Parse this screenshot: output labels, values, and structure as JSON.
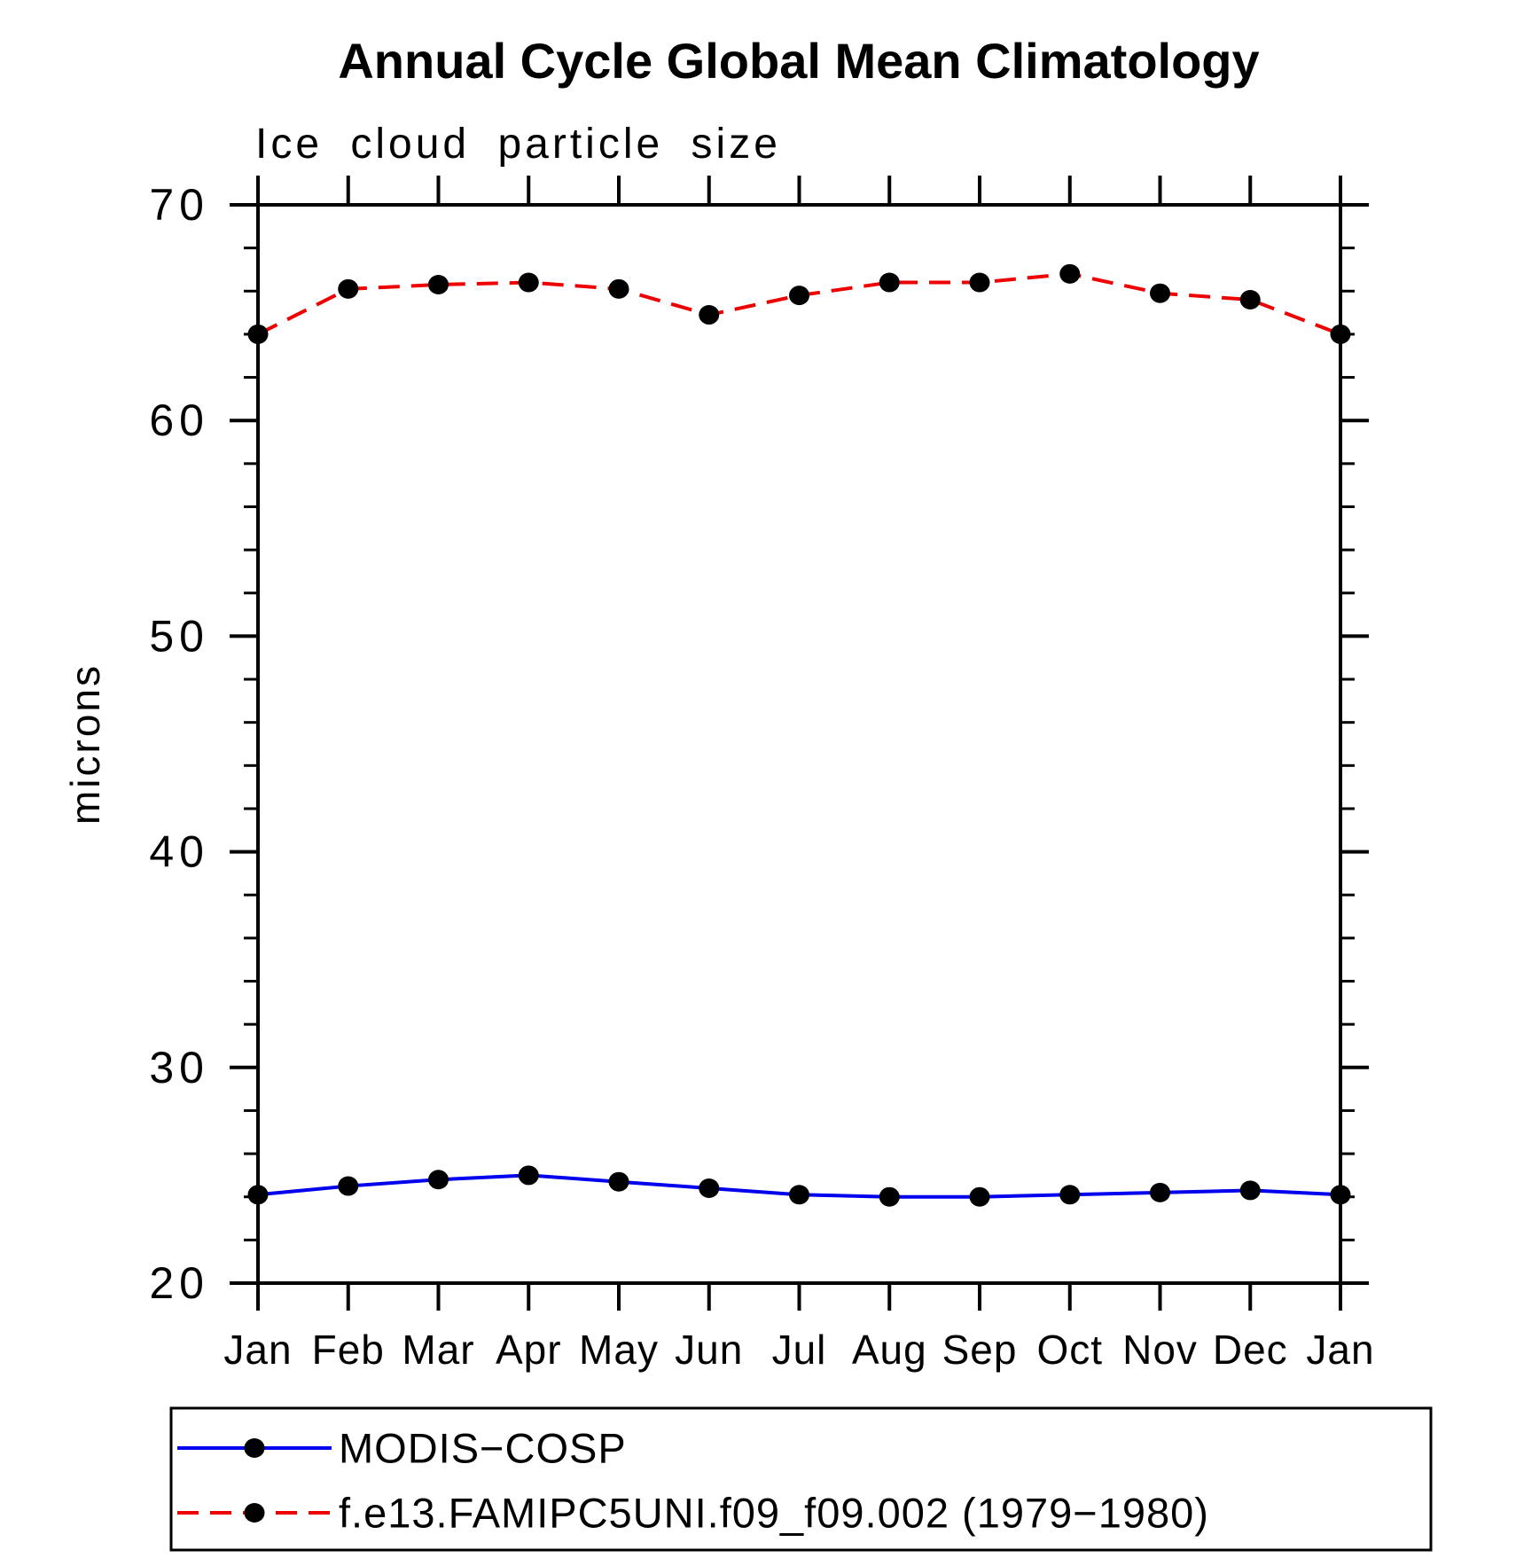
{
  "chart_data": {
    "type": "line",
    "title": "Annual Cycle Global Mean Climatology",
    "subtitle": "Ice cloud particle size",
    "ylabel": "microns",
    "xlabel": "",
    "ylim": [
      20,
      70
    ],
    "y_major_ticks": [
      20,
      30,
      40,
      50,
      60,
      70
    ],
    "y_minor_step": 2,
    "grid": false,
    "legend_position": "bottom-box",
    "background_color": "#ffffff",
    "axis_color": "#000000",
    "marker_color": "#000000",
    "categories": [
      "Jan",
      "Feb",
      "Mar",
      "Apr",
      "May",
      "Jun",
      "Jul",
      "Aug",
      "Sep",
      "Oct",
      "Nov",
      "Dec",
      "Jan"
    ],
    "series": [
      {
        "name": "MODIS−COSP",
        "color": "#0000ee",
        "line_style": "solid",
        "marker": "filled-circle",
        "values": [
          24.1,
          24.5,
          24.8,
          25.0,
          24.7,
          24.4,
          24.1,
          24.0,
          24.0,
          24.1,
          24.2,
          24.3,
          24.1
        ]
      },
      {
        "name": "f.e13.FAMIPC5UNI.f09_f09.002 (1979−1980)",
        "color": "#ee0000",
        "line_style": "dashed",
        "marker": "filled-circle",
        "values": [
          64.0,
          66.1,
          66.3,
          66.4,
          66.1,
          64.9,
          65.8,
          66.4,
          66.4,
          66.8,
          65.9,
          65.6,
          64.0
        ]
      }
    ]
  }
}
